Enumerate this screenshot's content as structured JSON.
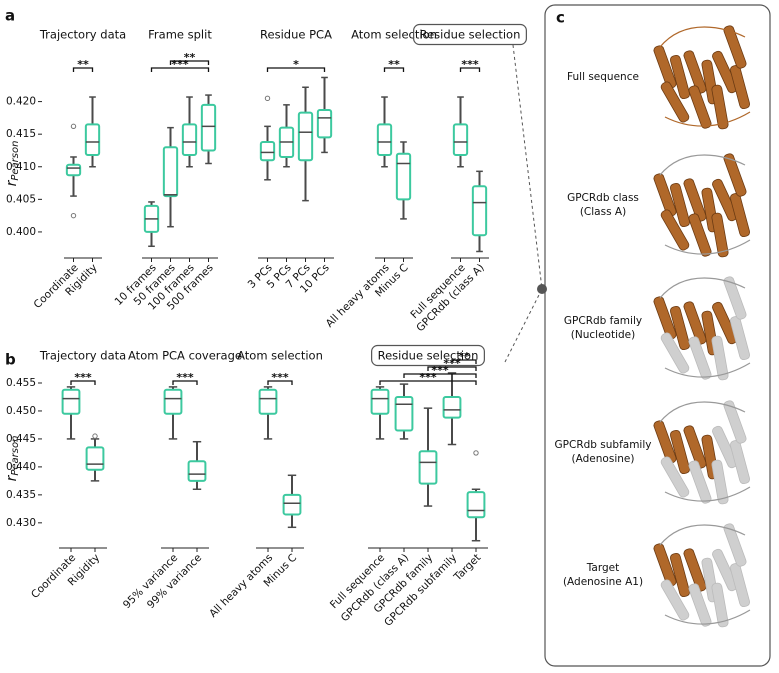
{
  "chart_data": [
    {
      "type": "box",
      "label": "a",
      "ylabel": "r",
      "ylabel_sub": "Pearson",
      "ylim": [
        0.396,
        0.425
      ],
      "yticks": [
        {
          "value": 0.4,
          "label": "0.400"
        },
        0.405,
        {
          "value": 0.41,
          "label": "0.410"
        },
        0.415,
        {
          "value": 0.42,
          "label": "0.420"
        }
      ],
      "box_color": "#3cc99f",
      "line_color": "#4a4a4a",
      "groups": [
        {
          "title": "Trajectory data",
          "categories": [
            "Coordinate",
            "Rigidity"
          ],
          "boxes": [
            {
              "whislo": 0.4055,
              "q1": 0.4087,
              "median": 0.4098,
              "q3": 0.4103,
              "whishi": 0.4115,
              "fliers": [
                0.4162,
                0.4025
              ]
            },
            {
              "whislo": 0.41,
              "q1": 0.4118,
              "median": 0.4138,
              "q3": 0.4165,
              "whishi": 0.4207,
              "fliers": []
            }
          ],
          "significance": [
            {
              "from": 0,
              "to": 1,
              "label": "**"
            }
          ]
        },
        {
          "title": "Frame split",
          "categories": [
            "10 frames",
            "50 frames",
            "100 frames",
            "500 frames"
          ],
          "boxes": [
            {
              "whislo": 0.3978,
              "q1": 0.4,
              "median": 0.402,
              "q3": 0.404,
              "whishi": 0.4046,
              "fliers": []
            },
            {
              "whislo": 0.4008,
              "q1": 0.4055,
              "median": 0.4057,
              "q3": 0.413,
              "whishi": 0.416,
              "fliers": []
            },
            {
              "whislo": 0.41,
              "q1": 0.4118,
              "median": 0.4138,
              "q3": 0.4165,
              "whishi": 0.4207,
              "fliers": []
            },
            {
              "whislo": 0.4105,
              "q1": 0.4125,
              "median": 0.4162,
              "q3": 0.4195,
              "whishi": 0.421,
              "fliers": []
            }
          ],
          "significance": [
            {
              "from": 0,
              "to": 3,
              "label": "***"
            },
            {
              "from": 1,
              "to": 3,
              "label": "**"
            }
          ]
        },
        {
          "title": "Residue PCA",
          "categories": [
            "3 PCs",
            "5 PCs",
            "7 PCs",
            "10 PCs"
          ],
          "boxes": [
            {
              "whislo": 0.408,
              "q1": 0.411,
              "median": 0.4122,
              "q3": 0.4138,
              "whishi": 0.4162,
              "fliers": [
                0.4205
              ]
            },
            {
              "whislo": 0.41,
              "q1": 0.4115,
              "median": 0.4138,
              "q3": 0.416,
              "whishi": 0.4195,
              "fliers": []
            },
            {
              "whislo": 0.4048,
              "q1": 0.411,
              "median": 0.4153,
              "q3": 0.4183,
              "whishi": 0.4222,
              "fliers": []
            },
            {
              "whislo": 0.4122,
              "q1": 0.4145,
              "median": 0.4175,
              "q3": 0.4187,
              "whishi": 0.4237,
              "fliers": []
            }
          ],
          "significance": [
            {
              "from": 0,
              "to": 3,
              "label": "*"
            }
          ]
        },
        {
          "title": "Atom selection",
          "categories": [
            "All heavy atoms",
            "Minus C"
          ],
          "boxes": [
            {
              "whislo": 0.41,
              "q1": 0.4118,
              "median": 0.4138,
              "q3": 0.4165,
              "whishi": 0.4207,
              "fliers": []
            },
            {
              "whislo": 0.402,
              "q1": 0.405,
              "median": 0.4105,
              "q3": 0.412,
              "whishi": 0.4138,
              "fliers": []
            }
          ],
          "significance": [
            {
              "from": 0,
              "to": 1,
              "label": "**"
            }
          ]
        },
        {
          "title": "Residue selection",
          "highlight": true,
          "categories": [
            "Full sequence",
            "GPCRdb (class A)"
          ],
          "boxes": [
            {
              "whislo": 0.41,
              "q1": 0.4118,
              "median": 0.4138,
              "q3": 0.4165,
              "whishi": 0.4207,
              "fliers": []
            },
            {
              "whislo": 0.397,
              "q1": 0.3995,
              "median": 0.4045,
              "q3": 0.407,
              "whishi": 0.4093,
              "fliers": []
            }
          ],
          "significance": [
            {
              "from": 0,
              "to": 1,
              "label": "***"
            }
          ]
        }
      ]
    },
    {
      "type": "box",
      "label": "b",
      "ylabel": "r",
      "ylabel_sub": "Pearson",
      "ylim": [
        0.4255,
        0.4575
      ],
      "yticks": [
        {
          "value": 0.43,
          "label": "0.430"
        },
        0.435,
        {
          "value": 0.44,
          "label": "0.440"
        },
        0.445,
        {
          "value": 0.45,
          "label": "0.450"
        },
        0.455
      ],
      "box_color": "#3cc99f",
      "line_color": "#4a4a4a",
      "groups": [
        {
          "title": "Trajectory data",
          "categories": [
            "Coordinate",
            "Rigidity"
          ],
          "boxes": [
            {
              "whislo": 0.445,
              "q1": 0.4495,
              "median": 0.4522,
              "q3": 0.4538,
              "whishi": 0.4543,
              "fliers": []
            },
            {
              "whislo": 0.4375,
              "q1": 0.4395,
              "median": 0.4405,
              "q3": 0.4435,
              "whishi": 0.445,
              "fliers": [
                0.4455
              ]
            }
          ],
          "significance": [
            {
              "from": 0,
              "to": 1,
              "label": "***"
            }
          ]
        },
        {
          "title": "Atom PCA coverage",
          "categories": [
            "95% variance",
            "99% variance"
          ],
          "boxes": [
            {
              "whislo": 0.445,
              "q1": 0.4495,
              "median": 0.4522,
              "q3": 0.4538,
              "whishi": 0.4543,
              "fliers": []
            },
            {
              "whislo": 0.436,
              "q1": 0.4375,
              "median": 0.4387,
              "q3": 0.441,
              "whishi": 0.4445,
              "fliers": []
            }
          ],
          "significance": [
            {
              "from": 0,
              "to": 1,
              "label": "***"
            }
          ]
        },
        {
          "title": "Atom selection",
          "categories": [
            "All heavy atoms",
            "Minus C"
          ],
          "boxes": [
            {
              "whislo": 0.445,
              "q1": 0.4495,
              "median": 0.4522,
              "q3": 0.4538,
              "whishi": 0.4543,
              "fliers": []
            },
            {
              "whislo": 0.4292,
              "q1": 0.4315,
              "median": 0.4335,
              "q3": 0.435,
              "whishi": 0.4385,
              "fliers": []
            }
          ],
          "significance": [
            {
              "from": 0,
              "to": 1,
              "label": "***"
            }
          ]
        },
        {
          "title": "Residue selection",
          "highlight": true,
          "categories": [
            "Full sequence",
            "GPCRdb (class A)",
            "GPCRdb family",
            "GPCRdb subfamily",
            "Target"
          ],
          "boxes": [
            {
              "whislo": 0.445,
              "q1": 0.4495,
              "median": 0.4522,
              "q3": 0.4538,
              "whishi": 0.4543,
              "fliers": []
            },
            {
              "whislo": 0.445,
              "q1": 0.4465,
              "median": 0.4512,
              "q3": 0.4525,
              "whishi": 0.4548,
              "fliers": []
            },
            {
              "whislo": 0.433,
              "q1": 0.437,
              "median": 0.4408,
              "q3": 0.4428,
              "whishi": 0.4505,
              "fliers": []
            },
            {
              "whislo": 0.444,
              "q1": 0.4488,
              "median": 0.4502,
              "q3": 0.4525,
              "whishi": 0.4568,
              "fliers": []
            },
            {
              "whislo": 0.4268,
              "q1": 0.431,
              "median": 0.4322,
              "q3": 0.4355,
              "whishi": 0.436,
              "fliers": [
                0.4425
              ]
            }
          ],
          "significance": [
            {
              "from": 0,
              "to": 4,
              "label": "***"
            },
            {
              "from": 1,
              "to": 4,
              "label": "***"
            },
            {
              "from": 2,
              "to": 4,
              "label": "***"
            },
            {
              "from": 3,
              "to": 4,
              "label": "**"
            }
          ]
        }
      ]
    }
  ],
  "panel_c": {
    "label": "c",
    "items": [
      [
        "Full sequence"
      ],
      [
        "GPCRdb class",
        "(Class A)"
      ],
      [
        "GPCRdb family",
        "(Nucleotide)"
      ],
      [
        "GPCRdb subfamily",
        "(Adenosine)"
      ],
      [
        "Target",
        "(Adenosine A1)"
      ]
    ]
  }
}
